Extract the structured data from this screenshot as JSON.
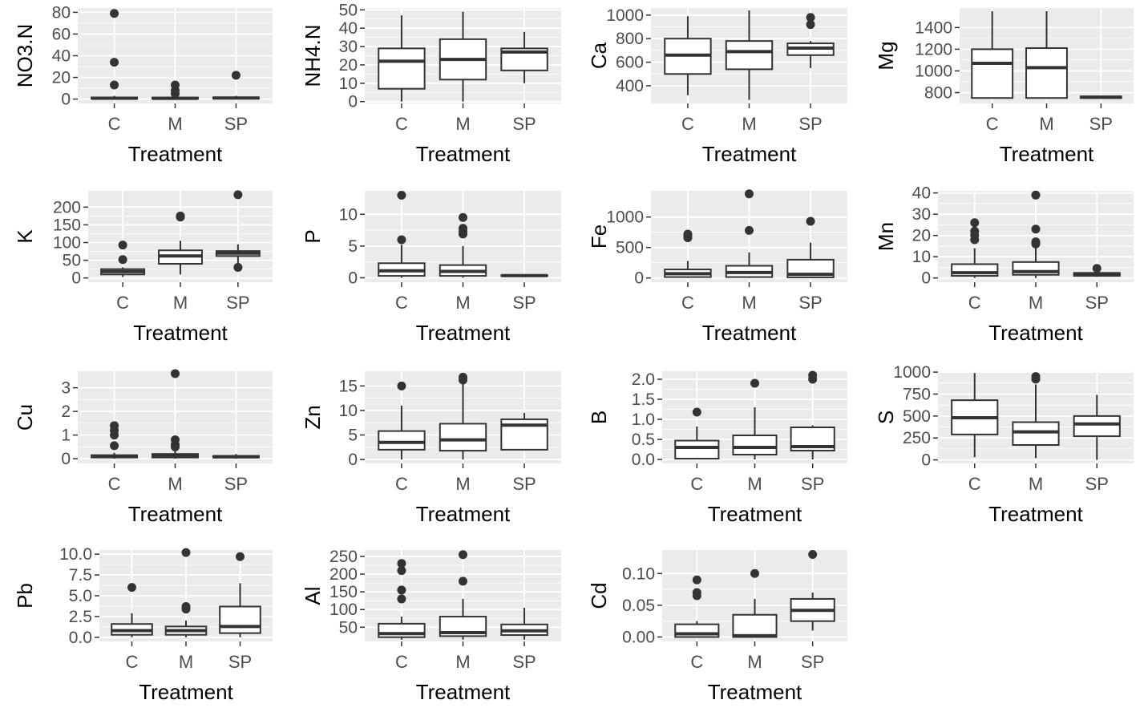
{
  "figure": {
    "panel_bg": "#ebebeb",
    "grid_major": "#ffffff",
    "box_stroke": "#333333",
    "box_fill": "#ffffff",
    "outlier_fill": "#333333"
  },
  "chart_data": [
    {
      "type": "boxplot",
      "ylabel": "NO3.N",
      "xlabel": "Treatment",
      "categories": [
        "C",
        "M",
        "SP"
      ],
      "ylim": [
        -4,
        84
      ],
      "yticks": [
        0,
        20,
        40,
        60,
        80
      ],
      "ytick_labels": [
        "0",
        "20",
        "40",
        "60",
        "80"
      ],
      "boxes": [
        {
          "min": 0,
          "q1": 0.3,
          "median": 0.8,
          "q3": 1.5,
          "max": 3,
          "outliers": [
            13,
            34,
            79
          ]
        },
        {
          "min": 0,
          "q1": 0.3,
          "median": 0.7,
          "q3": 1.4,
          "max": 3,
          "outliers": [
            5,
            8,
            13
          ]
        },
        {
          "min": 0,
          "q1": 0.5,
          "median": 1.0,
          "q3": 1.6,
          "max": 3,
          "outliers": [
            22
          ]
        }
      ]
    },
    {
      "type": "boxplot",
      "ylabel": "NH4.N",
      "xlabel": "Treatment",
      "categories": [
        "C",
        "M",
        "SP"
      ],
      "ylim": [
        -1,
        51
      ],
      "yticks": [
        0,
        10,
        20,
        30,
        40,
        50
      ],
      "ytick_labels": [
        "0",
        "10",
        "20",
        "30",
        "40",
        "50"
      ],
      "boxes": [
        {
          "min": 0,
          "q1": 7,
          "median": 22,
          "q3": 29,
          "max": 47,
          "outliers": []
        },
        {
          "min": 0,
          "q1": 12,
          "median": 23,
          "q3": 34,
          "max": 49,
          "outliers": []
        },
        {
          "min": 10,
          "q1": 17,
          "median": 27,
          "q3": 29,
          "max": 38,
          "outliers": []
        }
      ]
    },
    {
      "type": "boxplot",
      "ylabel": "Ca",
      "xlabel": "Treatment",
      "categories": [
        "C",
        "M",
        "SP"
      ],
      "ylim": [
        250,
        1060
      ],
      "yticks": [
        400,
        600,
        800,
        1000
      ],
      "ytick_labels": [
        "400",
        "600",
        "800",
        "1000"
      ],
      "boxes": [
        {
          "min": 320,
          "q1": 500,
          "median": 660,
          "q3": 800,
          "max": 990,
          "outliers": []
        },
        {
          "min": 280,
          "q1": 540,
          "median": 690,
          "q3": 780,
          "max": 1040,
          "outliers": []
        },
        {
          "min": 550,
          "q1": 660,
          "median": 720,
          "q3": 760,
          "max": 780,
          "outliers": [
            920,
            980
          ]
        }
      ]
    },
    {
      "type": "boxplot",
      "ylabel": "Mg",
      "xlabel": "Treatment",
      "categories": [
        "C",
        "M",
        "SP"
      ],
      "ylim": [
        700,
        1580
      ],
      "yticks": [
        800,
        1000,
        1200,
        1400
      ],
      "ytick_labels": [
        "800",
        "1000",
        "1200",
        "1400"
      ],
      "boxes": [
        {
          "min": 750,
          "q1": 750,
          "median": 1070,
          "q3": 1200,
          "max": 1550,
          "outliers": []
        },
        {
          "min": 750,
          "q1": 750,
          "median": 1030,
          "q3": 1210,
          "max": 1550,
          "outliers": []
        },
        {
          "min": 750,
          "q1": 750,
          "median": 757,
          "q3": 765,
          "max": 770,
          "outliers": []
        }
      ]
    },
    {
      "type": "boxplot",
      "ylabel": "K",
      "xlabel": "Treatment",
      "categories": [
        "C",
        "M",
        "SP"
      ],
      "ylim": [
        -12,
        246
      ],
      "yticks": [
        0,
        50,
        100,
        150,
        200
      ],
      "ytick_labels": [
        "0",
        "50",
        "100",
        "150",
        "200"
      ],
      "boxes": [
        {
          "min": 3,
          "q1": 10,
          "median": 18,
          "q3": 25,
          "max": 30,
          "outliers": [
            52,
            93
          ]
        },
        {
          "min": 10,
          "q1": 40,
          "median": 62,
          "q3": 78,
          "max": 105,
          "outliers": [
            172,
            175
          ]
        },
        {
          "min": 40,
          "q1": 62,
          "median": 70,
          "q3": 76,
          "max": 95,
          "outliers": [
            30,
            235
          ]
        }
      ]
    },
    {
      "type": "boxplot",
      "ylabel": "P",
      "xlabel": "Treatment",
      "categories": [
        "C",
        "M",
        "SP"
      ],
      "ylim": [
        -0.7,
        13.7
      ],
      "yticks": [
        0,
        5,
        10
      ],
      "ytick_labels": [
        "0",
        "5",
        "10"
      ],
      "boxes": [
        {
          "min": 0,
          "q1": 0.3,
          "median": 1.1,
          "q3": 2.3,
          "max": 5.2,
          "outliers": [
            6,
            13
          ]
        },
        {
          "min": 0,
          "q1": 0.3,
          "median": 1.0,
          "q3": 2.0,
          "max": 5.0,
          "outliers": [
            6.9,
            7.3,
            7.8,
            9.5
          ]
        },
        {
          "min": 0.2,
          "q1": 0.3,
          "median": 0.35,
          "q3": 0.4,
          "max": 0.5,
          "outliers": []
        }
      ]
    },
    {
      "type": "boxplot",
      "ylabel": "Fe",
      "xlabel": "Treatment",
      "categories": [
        "C",
        "M",
        "SP"
      ],
      "ylim": [
        -70,
        1430
      ],
      "yticks": [
        0,
        500,
        1000
      ],
      "ytick_labels": [
        "0",
        "500",
        "1000"
      ],
      "boxes": [
        {
          "min": 0,
          "q1": 15,
          "median": 70,
          "q3": 140,
          "max": 280,
          "outliers": [
            660,
            700,
            720
          ]
        },
        {
          "min": 0,
          "q1": 15,
          "median": 90,
          "q3": 200,
          "max": 420,
          "outliers": [
            780,
            1380
          ]
        },
        {
          "min": 0,
          "q1": 10,
          "median": 60,
          "q3": 300,
          "max": 580,
          "outliers": [
            930
          ]
        }
      ]
    },
    {
      "type": "boxplot",
      "ylabel": "Mn",
      "xlabel": "Treatment",
      "categories": [
        "C",
        "M",
        "SP"
      ],
      "ylim": [
        -2,
        41
      ],
      "yticks": [
        0,
        10,
        20,
        30,
        40
      ],
      "ytick_labels": [
        "0",
        "10",
        "20",
        "30",
        "40"
      ],
      "boxes": [
        {
          "min": 0,
          "q1": 1,
          "median": 2.5,
          "q3": 6.5,
          "max": 14,
          "outliers": [
            18,
            20,
            22,
            26
          ]
        },
        {
          "min": 0,
          "q1": 1.5,
          "median": 3,
          "q3": 7.5,
          "max": 14,
          "outliers": [
            16,
            17,
            23,
            39
          ]
        },
        {
          "min": 0.5,
          "q1": 1,
          "median": 1.7,
          "q3": 2.4,
          "max": 3,
          "outliers": [
            4.5
          ]
        }
      ]
    },
    {
      "type": "boxplot",
      "ylabel": "Cu",
      "xlabel": "Treatment",
      "categories": [
        "C",
        "M",
        "SP"
      ],
      "ylim": [
        -0.2,
        3.7
      ],
      "yticks": [
        0,
        1,
        2,
        3
      ],
      "ytick_labels": [
        "0",
        "1",
        "2",
        "3"
      ],
      "boxes": [
        {
          "min": 0,
          "q1": 0.05,
          "median": 0.1,
          "q3": 0.15,
          "max": 0.25,
          "outliers": [
            0.55,
            1.0,
            1.2,
            1.4
          ]
        },
        {
          "min": 0,
          "q1": 0.05,
          "median": 0.12,
          "q3": 0.2,
          "max": 0.4,
          "outliers": [
            0.5,
            0.6,
            0.8,
            3.6
          ]
        },
        {
          "min": 0,
          "q1": 0.05,
          "median": 0.08,
          "q3": 0.12,
          "max": 0.2,
          "outliers": []
        }
      ]
    },
    {
      "type": "boxplot",
      "ylabel": "Zn",
      "xlabel": "Treatment",
      "categories": [
        "C",
        "M",
        "SP"
      ],
      "ylim": [
        -0.8,
        18
      ],
      "yticks": [
        0,
        5,
        10,
        15
      ],
      "ytick_labels": [
        "0",
        "5",
        "10",
        "15"
      ],
      "boxes": [
        {
          "min": 0,
          "q1": 2,
          "median": 3.5,
          "q3": 5.8,
          "max": 11,
          "outliers": [
            15
          ]
        },
        {
          "min": 0,
          "q1": 1.8,
          "median": 4,
          "q3": 7.3,
          "max": 15.5,
          "outliers": [
            16.2,
            16.8
          ]
        },
        {
          "min": 2,
          "q1": 2,
          "median": 7,
          "q3": 8.2,
          "max": 9.5,
          "outliers": []
        }
      ]
    },
    {
      "type": "boxplot",
      "ylabel": "B",
      "xlabel": "Treatment",
      "categories": [
        "C",
        "M",
        "SP"
      ],
      "ylim": [
        -0.1,
        2.2
      ],
      "yticks": [
        0,
        0.5,
        1,
        1.5,
        2
      ],
      "ytick_labels": [
        "0.0",
        "0.5",
        "1.0",
        "1.5",
        "2.0"
      ],
      "boxes": [
        {
          "min": 0,
          "q1": 0.02,
          "median": 0.3,
          "q3": 0.47,
          "max": 0.82,
          "outliers": [
            1.18
          ]
        },
        {
          "min": 0,
          "q1": 0.12,
          "median": 0.3,
          "q3": 0.6,
          "max": 1.3,
          "outliers": [
            1.9
          ]
        },
        {
          "min": 0,
          "q1": 0.22,
          "median": 0.32,
          "q3": 0.8,
          "max": 0.85,
          "outliers": [
            2.0,
            2.1
          ]
        }
      ]
    },
    {
      "type": "boxplot",
      "ylabel": "S",
      "xlabel": "Treatment",
      "categories": [
        "C",
        "M",
        "SP"
      ],
      "ylim": [
        -40,
        1010
      ],
      "yticks": [
        0,
        250,
        500,
        750,
        1000
      ],
      "ytick_labels": [
        "0",
        "250",
        "500",
        "750",
        "1000"
      ],
      "boxes": [
        {
          "min": 30,
          "q1": 290,
          "median": 480,
          "q3": 680,
          "max": 990,
          "outliers": []
        },
        {
          "min": 20,
          "q1": 170,
          "median": 320,
          "q3": 430,
          "max": 860,
          "outliers": [
            920,
            950
          ]
        },
        {
          "min": 0,
          "q1": 270,
          "median": 410,
          "q3": 500,
          "max": 740,
          "outliers": []
        }
      ]
    },
    {
      "type": "boxplot",
      "ylabel": "Pb",
      "xlabel": "Treatment",
      "categories": [
        "C",
        "M",
        "SP"
      ],
      "ylim": [
        -0.5,
        10.5
      ],
      "yticks": [
        0,
        2.5,
        5,
        7.5,
        10
      ],
      "ytick_labels": [
        "0.0",
        "2.5",
        "5.0",
        "7.5",
        "10.0"
      ],
      "boxes": [
        {
          "min": 0,
          "q1": 0.3,
          "median": 0.8,
          "q3": 1.6,
          "max": 2.9,
          "outliers": [
            6.0
          ]
        },
        {
          "min": 0,
          "q1": 0.3,
          "median": 0.8,
          "q3": 1.3,
          "max": 2.0,
          "outliers": [
            3.4,
            3.7,
            10.2
          ]
        },
        {
          "min": 0,
          "q1": 0.5,
          "median": 1.3,
          "q3": 3.7,
          "max": 6.5,
          "outliers": [
            9.7
          ]
        }
      ]
    },
    {
      "type": "boxplot",
      "ylabel": "Al",
      "xlabel": "Treatment",
      "categories": [
        "C",
        "M",
        "SP"
      ],
      "ylim": [
        10,
        268
      ],
      "yticks": [
        50,
        100,
        150,
        200,
        250
      ],
      "ytick_labels": [
        "50",
        "100",
        "150",
        "200",
        "250"
      ],
      "boxes": [
        {
          "min": 15,
          "q1": 22,
          "median": 32,
          "q3": 60,
          "max": 80,
          "outliers": [
            130,
            155,
            210,
            230
          ]
        },
        {
          "min": 15,
          "q1": 25,
          "median": 35,
          "q3": 80,
          "max": 130,
          "outliers": [
            180,
            255
          ]
        },
        {
          "min": 15,
          "q1": 28,
          "median": 40,
          "q3": 58,
          "max": 105,
          "outliers": []
        }
      ]
    },
    {
      "type": "boxplot",
      "ylabel": "Cd",
      "xlabel": "Treatment",
      "categories": [
        "C",
        "M",
        "SP"
      ],
      "ylim": [
        -0.007,
        0.137
      ],
      "yticks": [
        0,
        0.05,
        0.1
      ],
      "ytick_labels": [
        "0.00",
        "0.05",
        "0.10"
      ],
      "boxes": [
        {
          "min": 0,
          "q1": 0,
          "median": 0.005,
          "q3": 0.02,
          "max": 0.025,
          "outliers": [
            0.065,
            0.07,
            0.09
          ]
        },
        {
          "min": 0,
          "q1": 0,
          "median": 0.002,
          "q3": 0.035,
          "max": 0.06,
          "outliers": [
            0.1
          ]
        },
        {
          "min": 0.01,
          "q1": 0.025,
          "median": 0.042,
          "q3": 0.06,
          "max": 0.07,
          "outliers": [
            0.13
          ]
        }
      ]
    }
  ]
}
